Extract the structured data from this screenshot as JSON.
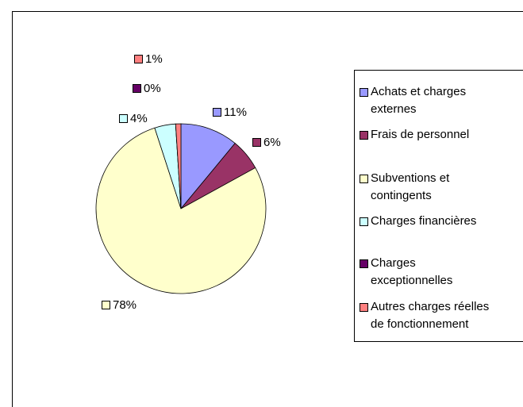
{
  "chart_data": {
    "type": "pie",
    "categories": [
      "Achats et charges externes",
      "Frais de personnel",
      "Subventions et contingents",
      "Charges financières",
      "Charges exceptionnelles",
      "Autres charges réelles de fonctionnement"
    ],
    "values": [
      11,
      6,
      78,
      4,
      0,
      1
    ],
    "value_labels": [
      "11%",
      "6%",
      "78%",
      "4%",
      "0%",
      "1%"
    ],
    "colors": [
      "#9999ff",
      "#993366",
      "#ffffcc",
      "#ccffff",
      "#660066",
      "#ff8080"
    ]
  }
}
